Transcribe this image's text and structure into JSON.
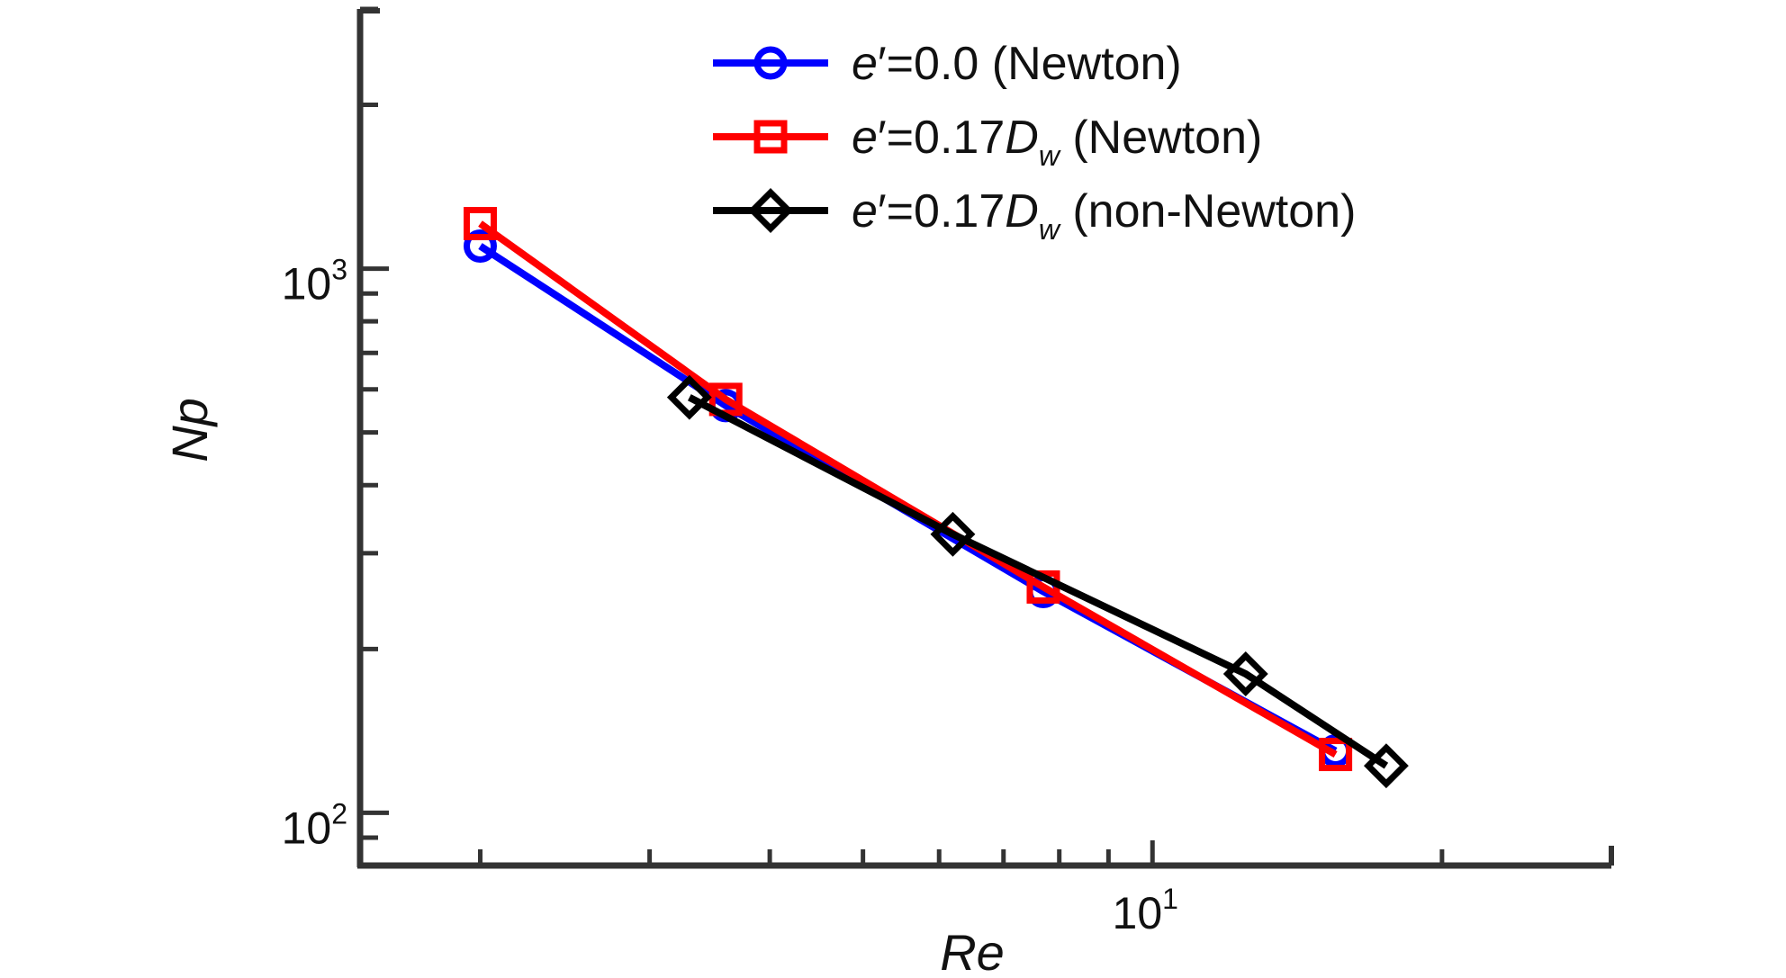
{
  "chart_data": {
    "type": "line",
    "title": "",
    "xlabel": "Re",
    "ylabel": "Np",
    "xscale": "log",
    "yscale": "log",
    "xlim": [
      1.5,
      30
    ],
    "ylim": [
      80,
      3000
    ],
    "grid": false,
    "legend_position": "top-right",
    "x_tick_labels": [
      {
        "base": "10",
        "exp": "1",
        "value": 10
      }
    ],
    "y_tick_labels": [
      {
        "base": "10",
        "exp": "2",
        "value": 100
      },
      {
        "base": "10",
        "exp": "3",
        "value": 1000
      }
    ],
    "series": [
      {
        "legend": {
          "prefix": "e′=0.0 (Newton)",
          "italic_part": "",
          "subscript": "",
          "suffix": ""
        },
        "color": "#0000ff",
        "marker": "circle",
        "x": [
          2.0,
          3.6,
          7.7,
          15.5
        ],
        "y": [
          1100,
          560,
          255,
          130
        ]
      },
      {
        "legend": {
          "prefix": "e′=0.17",
          "italic_part": "D",
          "subscript": "w",
          "suffix": " (Newton)"
        },
        "color": "#ff0000",
        "marker": "square",
        "x": [
          2.0,
          3.6,
          7.7,
          15.5
        ],
        "y": [
          1210,
          575,
          260,
          128
        ]
      },
      {
        "legend": {
          "prefix": "e′=0.17",
          "italic_part": "D",
          "subscript": "w",
          "suffix": " (non-Newton)"
        },
        "color": "#000000",
        "marker": "diamond",
        "x": [
          3.3,
          6.2,
          12.5,
          17.5
        ],
        "y": [
          580,
          325,
          180,
          122
        ]
      }
    ]
  }
}
